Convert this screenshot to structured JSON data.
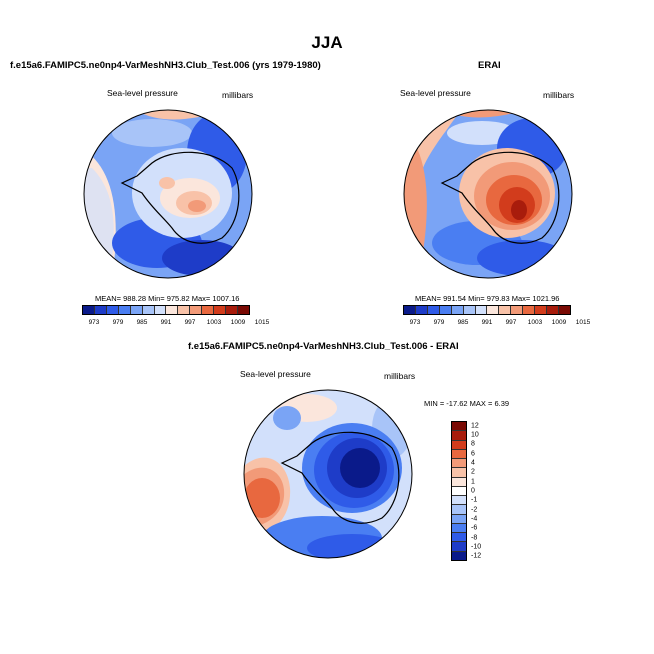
{
  "page_title": "JJA",
  "palette_abs": [
    "#0a1a8a",
    "#1e3cc8",
    "#2f5be8",
    "#4a7ef2",
    "#7aa4f5",
    "#a8c4f8",
    "#d2e0fb",
    "#fbe6dc",
    "#f8c2a8",
    "#f29a78",
    "#e8683f",
    "#d23c1c",
    "#a81c0c",
    "#7a0a04"
  ],
  "palette_diff": [
    "#0a1a8a",
    "#1e3cc8",
    "#2f5be8",
    "#4a7ef2",
    "#7aa4f5",
    "#a8c4f8",
    "#d2e0fb",
    "#ffffff",
    "#fbe6dc",
    "#f8c2a8",
    "#f29a78",
    "#e8683f",
    "#d23c1c",
    "#a81c0c",
    "#7a0a04"
  ],
  "panel_model": {
    "title": "f.e15a6.FAMIPC5.ne0np4-VarMeshNH3.Club_Test.006 (yrs 1979-1980)",
    "variable": "Sea-level pressure",
    "units": "millibars",
    "stats": "MEAN= 988.28   Min= 975.82   Max= 1007.16",
    "colorbar_labels": [
      "973",
      "979",
      "985",
      "991",
      "997",
      "1003",
      "1009",
      "1015"
    ]
  },
  "panel_obs": {
    "title": "ERAI",
    "variable": "Sea-level pressure",
    "units": "millibars",
    "stats": "MEAN= 991.54   Min= 979.83   Max= 1021.96",
    "colorbar_labels": [
      "973",
      "979",
      "985",
      "991",
      "997",
      "1003",
      "1009",
      "1015"
    ]
  },
  "panel_diff": {
    "title": "f.e15a6.FAMIPC5.ne0np4-VarMeshNH3.Club_Test.006 - ERAI",
    "variable": "Sea-level pressure",
    "units": "millibars",
    "stats": "MIN = -17.62  MAX =   6.39",
    "colorbar_labels": [
      "12",
      "10",
      "8",
      "6",
      "4",
      "2",
      "1",
      "0",
      "-1",
      "-2",
      "-4",
      "-6",
      "-8",
      "-10",
      "-12"
    ]
  }
}
